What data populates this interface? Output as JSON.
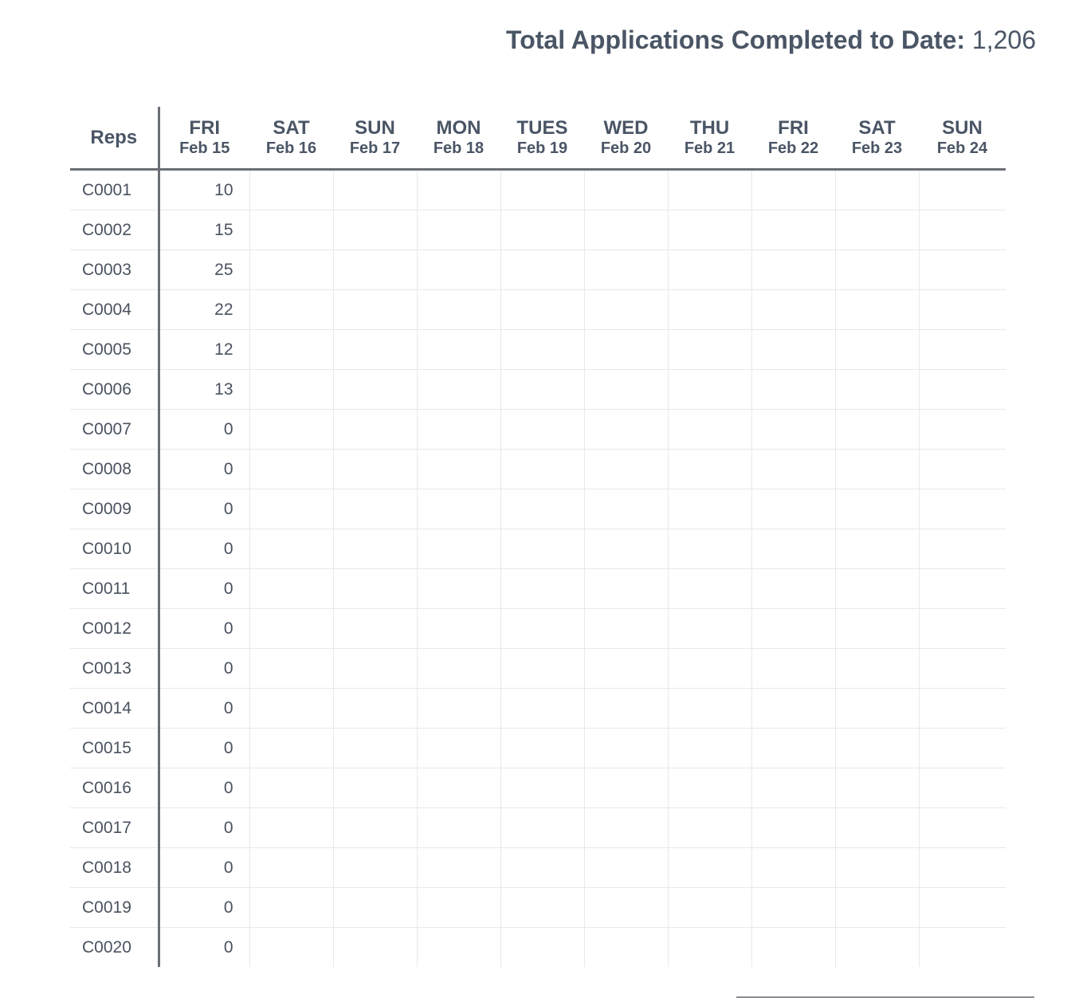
{
  "summary": {
    "label": "Total Applications Completed to Date:",
    "value": "1,206"
  },
  "table": {
    "rep_header": "Reps",
    "days": [
      {
        "dow": "FRI",
        "date": "Feb 15"
      },
      {
        "dow": "SAT",
        "date": "Feb 16"
      },
      {
        "dow": "SUN",
        "date": "Feb 17"
      },
      {
        "dow": "MON",
        "date": "Feb 18"
      },
      {
        "dow": "TUES",
        "date": "Feb 19"
      },
      {
        "dow": "WED",
        "date": "Feb 20"
      },
      {
        "dow": "THU",
        "date": "Feb 21"
      },
      {
        "dow": "FRI",
        "date": "Feb 22"
      },
      {
        "dow": "SAT",
        "date": "Feb 23"
      },
      {
        "dow": "SUN",
        "date": "Feb 24"
      }
    ],
    "rows": [
      {
        "rep": "C0001",
        "values": [
          "10",
          "",
          "",
          "",
          "",
          "",
          "",
          "",
          "",
          ""
        ]
      },
      {
        "rep": "C0002",
        "values": [
          "15",
          "",
          "",
          "",
          "",
          "",
          "",
          "",
          "",
          ""
        ]
      },
      {
        "rep": "C0003",
        "values": [
          "25",
          "",
          "",
          "",
          "",
          "",
          "",
          "",
          "",
          ""
        ]
      },
      {
        "rep": "C0004",
        "values": [
          "22",
          "",
          "",
          "",
          "",
          "",
          "",
          "",
          "",
          ""
        ]
      },
      {
        "rep": "C0005",
        "values": [
          "12",
          "",
          "",
          "",
          "",
          "",
          "",
          "",
          "",
          ""
        ]
      },
      {
        "rep": "C0006",
        "values": [
          "13",
          "",
          "",
          "",
          "",
          "",
          "",
          "",
          "",
          ""
        ]
      },
      {
        "rep": "C0007",
        "values": [
          "0",
          "",
          "",
          "",
          "",
          "",
          "",
          "",
          "",
          ""
        ]
      },
      {
        "rep": "C0008",
        "values": [
          "0",
          "",
          "",
          "",
          "",
          "",
          "",
          "",
          "",
          ""
        ]
      },
      {
        "rep": "C0009",
        "values": [
          "0",
          "",
          "",
          "",
          "",
          "",
          "",
          "",
          "",
          ""
        ]
      },
      {
        "rep": "C0010",
        "values": [
          "0",
          "",
          "",
          "",
          "",
          "",
          "",
          "",
          "",
          ""
        ]
      },
      {
        "rep": "C0011",
        "values": [
          "0",
          "",
          "",
          "",
          "",
          "",
          "",
          "",
          "",
          ""
        ]
      },
      {
        "rep": "C0012",
        "values": [
          "0",
          "",
          "",
          "",
          "",
          "",
          "",
          "",
          "",
          ""
        ]
      },
      {
        "rep": "C0013",
        "values": [
          "0",
          "",
          "",
          "",
          "",
          "",
          "",
          "",
          "",
          ""
        ]
      },
      {
        "rep": "C0014",
        "values": [
          "0",
          "",
          "",
          "",
          "",
          "",
          "",
          "",
          "",
          ""
        ]
      },
      {
        "rep": "C0015",
        "values": [
          "0",
          "",
          "",
          "",
          "",
          "",
          "",
          "",
          "",
          ""
        ]
      },
      {
        "rep": "C0016",
        "values": [
          "0",
          "",
          "",
          "",
          "",
          "",
          "",
          "",
          "",
          ""
        ]
      },
      {
        "rep": "C0017",
        "values": [
          "0",
          "",
          "",
          "",
          "",
          "",
          "",
          "",
          "",
          ""
        ]
      },
      {
        "rep": "C0018",
        "values": [
          "0",
          "",
          "",
          "",
          "",
          "",
          "",
          "",
          "",
          ""
        ]
      },
      {
        "rep": "C0019",
        "values": [
          "0",
          "",
          "",
          "",
          "",
          "",
          "",
          "",
          "",
          ""
        ]
      },
      {
        "rep": "C0020",
        "values": [
          "0",
          "",
          "",
          "",
          "",
          "",
          "",
          "",
          "",
          ""
        ]
      }
    ]
  },
  "colors": {
    "text": "#4a5565",
    "rule": "#6a6e74",
    "grid": "#e6e8eb"
  }
}
